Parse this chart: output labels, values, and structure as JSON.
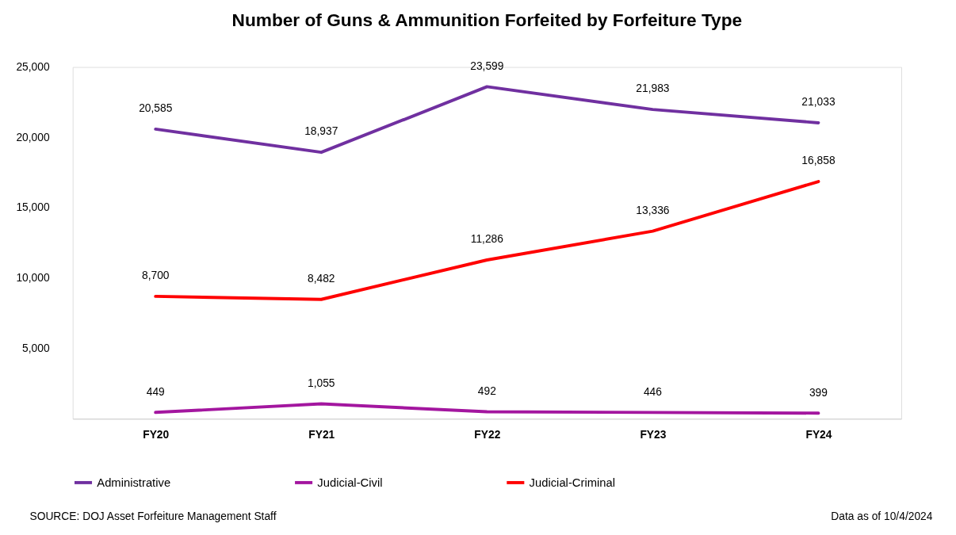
{
  "chart_data": {
    "type": "line",
    "title": "Number of Guns & Ammunition Forfeited by Forfeiture Type",
    "categories": [
      "FY20",
      "FY21",
      "FY22",
      "FY23",
      "FY24"
    ],
    "series": [
      {
        "name": "Administrative",
        "color": "#7030a0",
        "values": [
          20585,
          18937,
          23599,
          21983,
          21033
        ],
        "value_labels": [
          "20,585",
          "18,937",
          "23,599",
          "21,983",
          "21,033"
        ]
      },
      {
        "name": "Judicial-Civil",
        "color": "#a3169f",
        "values": [
          449,
          1055,
          492,
          446,
          399
        ],
        "value_labels": [
          "449",
          "1,055",
          "492",
          "446",
          "399"
        ]
      },
      {
        "name": "Judicial-Criminal",
        "color": "#ff0000",
        "values": [
          8700,
          8482,
          11286,
          13336,
          16858
        ],
        "value_labels": [
          "8,700",
          "8,482",
          "11,286",
          "13,336",
          "16,858"
        ]
      }
    ],
    "ylim": [
      0,
      25000
    ],
    "yticks": [
      {
        "value": 5000,
        "label": "5,000"
      },
      {
        "value": 10000,
        "label": "10,000"
      },
      {
        "value": 15000,
        "label": "15,000"
      },
      {
        "value": 20000,
        "label": "20,000"
      },
      {
        "value": 25000,
        "label": "25,000"
      }
    ],
    "grid": false,
    "legend": "bottom",
    "marker": "none",
    "line_style": "solid",
    "annotations": [
      "SOURCE:  DOJ Asset Forfeiture Management Staff",
      "Data as of 10/4/2024"
    ]
  }
}
